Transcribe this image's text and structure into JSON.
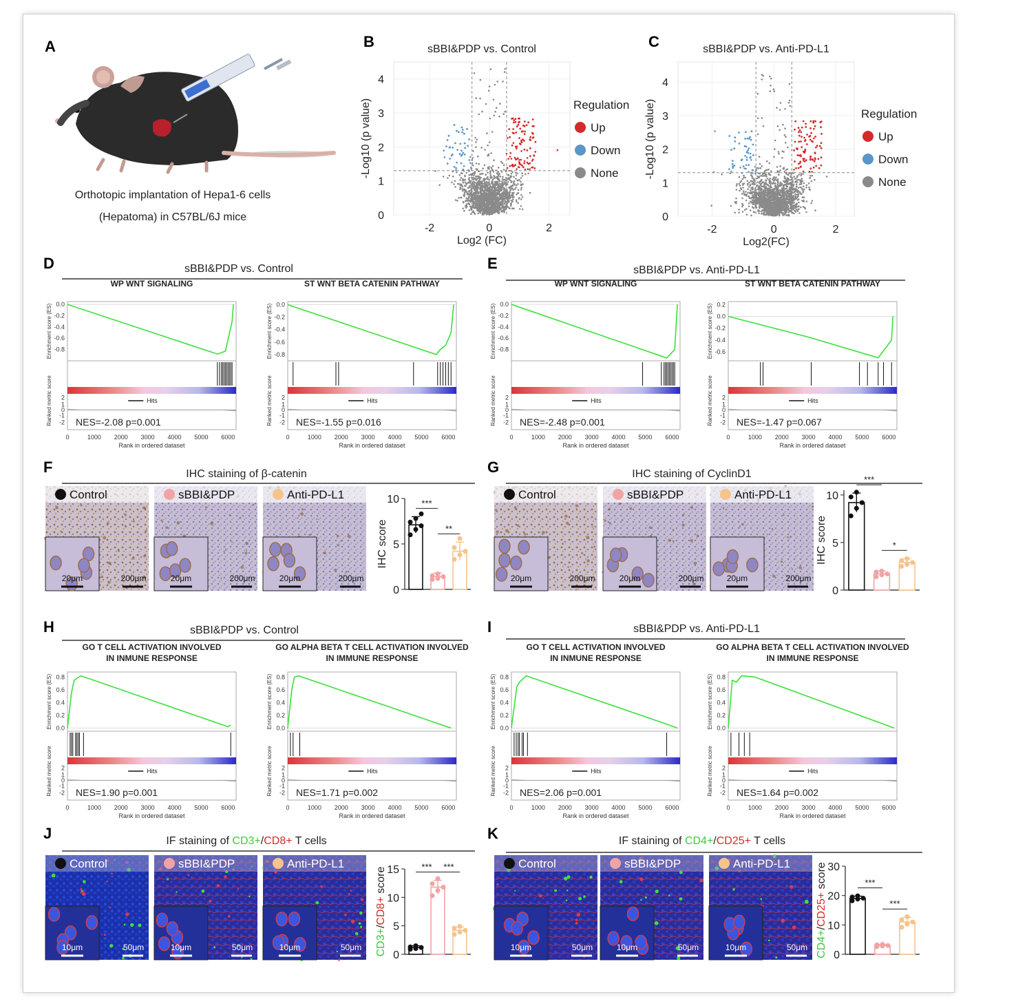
{
  "panels": {
    "A": {
      "letter": "A",
      "caption_line1": "Orthotopic implantation of Hepa1-6 cells",
      "caption_line2": "(Hepatoma) in C57BL/6J mice"
    },
    "B": {
      "letter": "B"
    },
    "C": {
      "letter": "C"
    },
    "D": {
      "letter": "D",
      "header": "sBBI&PDP vs. Control"
    },
    "E": {
      "letter": "E",
      "header": "sBBI&PDP vs. Anti-PD-L1"
    },
    "F": {
      "letter": "F",
      "header": "IHC staining of β-catenin"
    },
    "G": {
      "letter": "G",
      "header": "IHC staining of CyclinD1"
    },
    "H": {
      "letter": "H",
      "header": "sBBI&PDP vs. Control"
    },
    "I": {
      "letter": "I",
      "header": "sBBI&PDP vs. Anti-PD-L1"
    },
    "J": {
      "letter": "J",
      "header_pre": "IF staining of ",
      "header_m1": "CD3+",
      "header_sep": "/",
      "header_m2": "CD8+",
      "header_post": " T cells"
    },
    "K": {
      "letter": "K",
      "header_pre": "IF staining of ",
      "header_m1": "CD4+",
      "header_sep": "/",
      "header_m2": "CD25+",
      "header_post": " T cells"
    }
  },
  "groups": {
    "control": "Control",
    "treat": "sBBI&PDP",
    "anti": "Anti-PD-L1"
  },
  "colors": {
    "up": "#d42a2a",
    "down": "#5b95c9",
    "none": "#8a8a8a",
    "control": "#111111",
    "treat": "#f2a3a3",
    "anti": "#f5c48c",
    "es_line": "#39e039",
    "cd_green": "#3ec83e",
    "cd_red": "#d42a2a"
  },
  "scalebars": {
    "big_ihc": "200μm",
    "small_ihc": "20μm",
    "big_if": "50μm",
    "small_if": "10μm"
  },
  "chart_data": [
    {
      "id": "B",
      "type": "scatter",
      "title": "sBBI&PDP vs. Control",
      "xlabel": "Log2 (FC)",
      "ylabel": "-Log10 (p value)",
      "xlim": [
        -3.2,
        2.7
      ],
      "ylim": [
        0,
        4.5
      ],
      "xticks": [
        -2,
        0,
        2
      ],
      "yticks": [
        0,
        1,
        2,
        3,
        4
      ],
      "legend_title": "Regulation",
      "legend": [
        "Up",
        "Down",
        "None"
      ],
      "legend_position": "right",
      "threshold_x": [
        -0.58,
        0.58
      ],
      "threshold_y": 1.3
    },
    {
      "id": "C",
      "type": "scatter",
      "title": "sBBI&PDP vs. Anti-PD-L1",
      "xlabel": "Log2(FC)",
      "ylabel": "-Log10 (p value)",
      "xlim": [
        -3.1,
        2.6
      ],
      "ylim": [
        0,
        4.6
      ],
      "xticks": [
        -2,
        0,
        2
      ],
      "yticks": [
        0,
        1,
        2,
        3,
        4
      ],
      "legend_title": "Regulation",
      "legend": [
        "Up",
        "Down",
        "None"
      ],
      "legend_position": "right",
      "threshold_x": [
        -0.58,
        0.58
      ],
      "threshold_y": 1.3
    },
    {
      "id": "D1",
      "type": "line",
      "title": "WP WNT SIGNALING",
      "ylabel": "Enrichment score (ES)",
      "ylabel2": "Ranked metric score",
      "xlabel": "Rank in ordered dataset",
      "yticks": [
        0.0,
        -0.2,
        -0.4,
        -0.6,
        -0.8
      ],
      "ylim": [
        -1.0,
        0.05
      ],
      "xticks": [
        0,
        1000,
        2000,
        3000,
        4000,
        5000,
        6000
      ],
      "xlim": [
        0,
        6300
      ],
      "nes": "NES=-2.08 p=0.001",
      "hits_label": "Hits",
      "es_curve": [
        [
          0,
          0
        ],
        [
          5600,
          -0.88
        ],
        [
          5900,
          -0.83
        ],
        [
          6150,
          -0.3
        ],
        [
          6200,
          0
        ]
      ],
      "hits": [
        5600,
        5680,
        5750,
        5800,
        5850,
        5900,
        5950,
        6000,
        6050,
        6100,
        6150
      ]
    },
    {
      "id": "D2",
      "type": "line",
      "title": "ST WNT BETA CATENIN PATHWAY",
      "ylabel": "Enrichment score (ES)",
      "ylabel2": "Ranked metric score",
      "xlabel": "Rank in ordered dataset",
      "yticks": [
        0.0,
        -0.2,
        -0.4,
        -0.6,
        -0.8
      ],
      "ylim": [
        -0.9,
        0.05
      ],
      "xticks": [
        0,
        1000,
        2000,
        3000,
        4000,
        5000,
        6000
      ],
      "xlim": [
        0,
        6300
      ],
      "nes": "NES=-1.55 p=0.016",
      "hits_label": "Hits",
      "es_curve": [
        [
          0,
          0
        ],
        [
          5550,
          -0.8
        ],
        [
          5700,
          -0.72
        ],
        [
          5900,
          -0.65
        ],
        [
          6100,
          -0.45
        ],
        [
          6200,
          0
        ]
      ],
      "hits": [
        200,
        1800,
        1900,
        4700,
        5600,
        5700,
        5800,
        5900,
        6000,
        6100
      ]
    },
    {
      "id": "E1",
      "type": "line",
      "title": "WP WNT SIGNALING",
      "ylabel": "Enrichment score (ES)",
      "ylabel2": "Ranked metric score",
      "xlabel": "Rank in ordered dataset",
      "yticks": [
        0.0,
        -0.2,
        -0.4,
        -0.6,
        -0.8
      ],
      "ylim": [
        -1.0,
        0.05
      ],
      "xticks": [
        0,
        1000,
        2000,
        3000,
        4000,
        5000,
        6000
      ],
      "xlim": [
        0,
        6300
      ],
      "nes": "NES=-2.48 p=0.001",
      "hits_label": "Hits",
      "es_curve": [
        [
          0,
          0
        ],
        [
          5800,
          -0.95
        ],
        [
          6100,
          -0.8
        ],
        [
          6200,
          0
        ]
      ],
      "hits": [
        4900,
        5600,
        5700,
        5750,
        5800,
        5850,
        5900,
        5950,
        6000,
        6050,
        6100
      ]
    },
    {
      "id": "E2",
      "type": "line",
      "title": "ST WNT BETA CATENIN PATHWAY",
      "ylabel": "Enrichment score (ES)",
      "ylabel2": "Ranked metric score",
      "xlabel": "Rank in ordered dataset",
      "yticks": [
        0.2,
        0.0,
        -0.2,
        -0.4,
        -0.6
      ],
      "ylim": [
        -0.75,
        0.25
      ],
      "xticks": [
        0,
        1000,
        2000,
        3000,
        4000,
        5000,
        6000
      ],
      "xlim": [
        0,
        6300
      ],
      "nes": "NES=-1.47 p=0.067",
      "hits_label": "Hits",
      "es_curve": [
        [
          0,
          0
        ],
        [
          3000,
          -0.35
        ],
        [
          5600,
          -0.7
        ],
        [
          5800,
          -0.58
        ],
        [
          6100,
          -0.4
        ],
        [
          6150,
          0
        ]
      ],
      "hits": [
        1200,
        1300,
        3100,
        4900,
        5200,
        5600,
        5800,
        6100
      ]
    },
    {
      "id": "H1",
      "type": "line",
      "title": "GO T CELL ACTIVATION INVOLVED IN INMUNE RESPONSE",
      "ylabel": "Enrichment score (ES)",
      "ylabel2": "Ranked metric score",
      "xlabel": "Rank in ordered dataset",
      "yticks": [
        0.8,
        0.6,
        0.4,
        0.2,
        0.0
      ],
      "ylim": [
        -0.05,
        0.88
      ],
      "xticks": [
        0,
        1000,
        2000,
        3000,
        4000,
        5000,
        6000
      ],
      "xlim": [
        0,
        6300
      ],
      "nes": "NES=1.90 p=0.001",
      "hits_label": "Hits",
      "es_curve": [
        [
          0,
          0
        ],
        [
          150,
          0.55
        ],
        [
          250,
          0.75
        ],
        [
          500,
          0.82
        ],
        [
          6000,
          0.02
        ],
        [
          6100,
          0.05
        ]
      ],
      "hits": [
        100,
        150,
        200,
        300,
        350,
        400,
        450,
        600,
        6100
      ]
    },
    {
      "id": "H2",
      "type": "line",
      "title": "GO ALPHA BETA T CELL ACTIVATION INVOLVED IN IMMUNE RESPONSE",
      "ylabel": "Enrichment score (ES)",
      "ylabel2": "Ranked metric score",
      "xlabel": "Rank in ordered dataset",
      "yticks": [
        0.8,
        0.6,
        0.4,
        0.2,
        0.0
      ],
      "ylim": [
        -0.05,
        0.88
      ],
      "xticks": [
        0,
        1000,
        2000,
        3000,
        4000,
        5000,
        6000
      ],
      "xlim": [
        0,
        6300
      ],
      "nes": "NES=1.71 p=0.002",
      "hits_label": "Hits",
      "es_curve": [
        [
          0,
          0
        ],
        [
          150,
          0.6
        ],
        [
          250,
          0.8
        ],
        [
          400,
          0.82
        ],
        [
          6100,
          0.0
        ]
      ],
      "hits": [
        100,
        200,
        450
      ]
    },
    {
      "id": "I1",
      "type": "line",
      "title": "GO T CELL ACTIVATION INVOLVED IN INMUNE RESPONSE",
      "ylabel": "Enrichment score (ES)",
      "ylabel2": "Ranked metric score",
      "xlabel": "Rank in ordered dataset",
      "yticks": [
        0.8,
        0.6,
        0.4,
        0.2,
        0.0
      ],
      "ylim": [
        -0.05,
        0.88
      ],
      "xticks": [
        0,
        1000,
        2000,
        3000,
        4000,
        5000,
        6000
      ],
      "xlim": [
        0,
        6300
      ],
      "nes": "NES=2.06 p=0.001",
      "hits_label": "Hits",
      "es_curve": [
        [
          0,
          0
        ],
        [
          200,
          0.65
        ],
        [
          300,
          0.72
        ],
        [
          550,
          0.82
        ],
        [
          5800,
          0.06
        ],
        [
          6200,
          0.0
        ]
      ],
      "hits": [
        100,
        180,
        250,
        300,
        400,
        450,
        600,
        5800
      ]
    },
    {
      "id": "I2",
      "type": "line",
      "title": "GO ALPHA BETA T CELL ACTIVATION INVOLVED IN IMMUNE RESPONSE",
      "ylabel": "Enrichment score (ES)",
      "ylabel2": "Ranked metric score",
      "xlabel": "Rank in ordered dataset",
      "yticks": [
        0.8,
        0.6,
        0.4,
        0.2,
        0.0
      ],
      "ylim": [
        -0.05,
        0.88
      ],
      "xticks": [
        0,
        1000,
        2000,
        3000,
        4000,
        5000,
        6000
      ],
      "xlim": [
        0,
        6300
      ],
      "nes": "NES=1.64 p=0.002",
      "hits_label": "Hits",
      "es_curve": [
        [
          0,
          0
        ],
        [
          150,
          0.75
        ],
        [
          300,
          0.72
        ],
        [
          500,
          0.82
        ],
        [
          1000,
          0.8
        ],
        [
          6200,
          0.0
        ]
      ],
      "hits": [
        100,
        400,
        600,
        800
      ]
    },
    {
      "id": "Fbar",
      "type": "bar",
      "categories": [
        "Control",
        "sBBI&PDP",
        "Anti-PD-L1"
      ],
      "values": [
        7.1,
        1.4,
        4.2
      ],
      "errors": [
        0.9,
        0.4,
        1.0
      ],
      "points": [
        [
          6.0,
          6.6,
          7.0,
          7.4,
          7.8,
          8.3
        ],
        [
          1.1,
          1.2,
          1.4,
          1.5,
          1.7
        ],
        [
          3.3,
          3.8,
          4.2,
          4.6,
          5.6
        ]
      ],
      "ylabel": "IHC score",
      "ylim": [
        0,
        10
      ],
      "yticks": [
        0,
        5,
        10
      ],
      "sig": [
        {
          "pair": [
            0,
            1
          ],
          "label": "***"
        },
        {
          "pair": [
            1,
            2
          ],
          "label": "**"
        }
      ]
    },
    {
      "id": "Gbar",
      "type": "bar",
      "categories": [
        "Control",
        "sBBI&PDP",
        "Anti-PD-L1"
      ],
      "values": [
        9.2,
        1.7,
        2.9
      ],
      "errors": [
        1.0,
        0.3,
        0.4
      ],
      "points": [
        [
          7.8,
          8.6,
          9.2,
          9.8,
          10.3
        ],
        [
          1.4,
          1.6,
          1.7,
          1.9,
          2.0
        ],
        [
          2.5,
          2.7,
          2.9,
          3.1,
          3.3
        ]
      ],
      "ylabel": "IHC score",
      "ylim": [
        0,
        10.5
      ],
      "yticks": [
        0,
        5,
        10
      ],
      "sig": [
        {
          "pair": [
            0,
            1
          ],
          "label": "***"
        },
        {
          "pair": [
            1,
            2
          ],
          "label": "*"
        }
      ]
    },
    {
      "id": "Jbar",
      "type": "bar",
      "categories": [
        "Control",
        "sBBI&PDP",
        "Anti-PD-L1"
      ],
      "values": [
        1.2,
        11.8,
        4.2
      ],
      "errors": [
        0.3,
        1.2,
        0.6
      ],
      "points": [
        [
          0.9,
          1.0,
          1.2,
          1.3,
          1.5
        ],
        [
          10.3,
          11.2,
          11.8,
          12.4,
          13.3
        ],
        [
          3.5,
          3.9,
          4.2,
          4.6,
          4.9
        ]
      ],
      "ylabel_m1": "CD3+",
      "ylabel_sep": "/",
      "ylabel_m2": "CD8+",
      "ylabel_post": " score",
      "ylim": [
        0,
        15
      ],
      "yticks": [
        0,
        5,
        10,
        15
      ],
      "sig": [
        {
          "pair": [
            0,
            1
          ],
          "label": "***"
        },
        {
          "pair": [
            1,
            2
          ],
          "label": "***"
        }
      ]
    },
    {
      "id": "Kbar",
      "type": "bar",
      "categories": [
        "Control",
        "sBBI&PDP",
        "Anti-PD-L1"
      ],
      "values": [
        19.0,
        3.0,
        11.0
      ],
      "errors": [
        0.8,
        0.4,
        1.6
      ],
      "points": [
        [
          18.2,
          18.8,
          19.1,
          19.5,
          19.9
        ],
        [
          2.6,
          2.8,
          3.0,
          3.2,
          3.4
        ],
        [
          9.2,
          10.3,
          11.0,
          11.8,
          12.8
        ]
      ],
      "ylabel_m1": "CD4+",
      "ylabel_sep": "/",
      "ylabel_m2": "CD25+",
      "ylabel_post": " score",
      "ylim": [
        0,
        30
      ],
      "yticks": [
        0,
        10,
        20,
        30
      ],
      "sig": [
        {
          "pair": [
            0,
            1
          ],
          "label": "***"
        },
        {
          "pair": [
            1,
            2
          ],
          "label": "***"
        }
      ]
    }
  ]
}
